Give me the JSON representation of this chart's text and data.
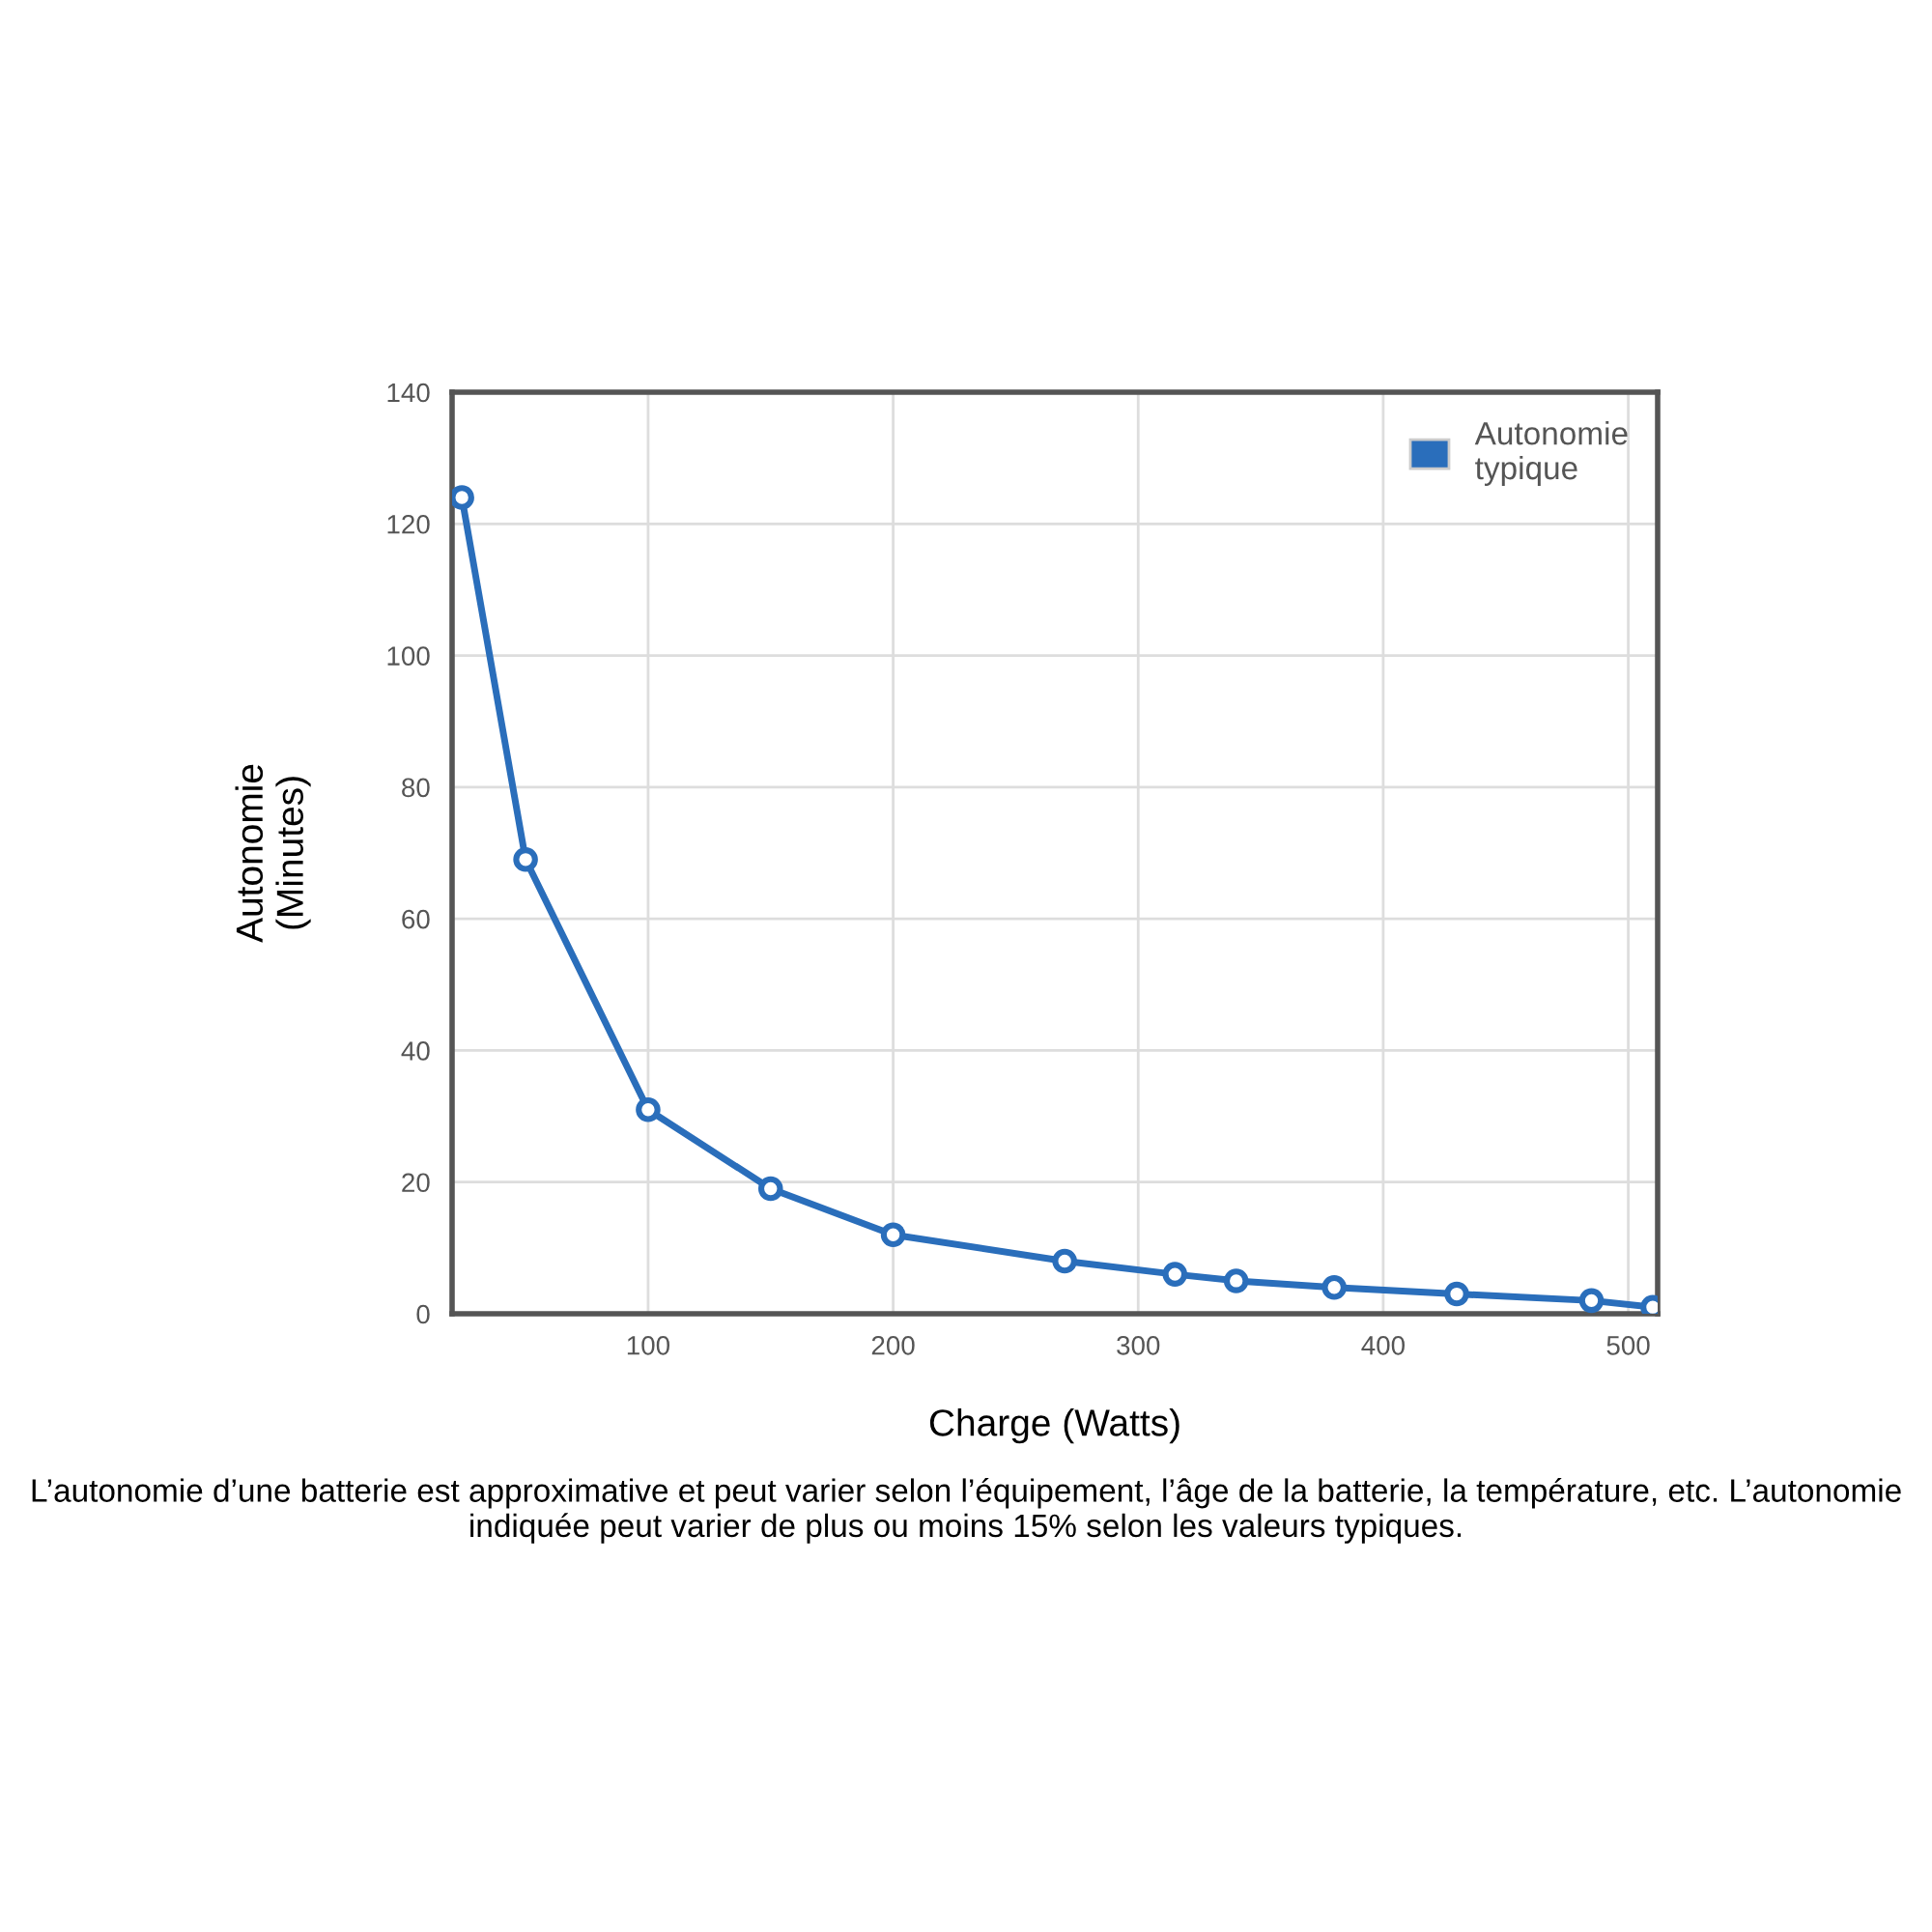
{
  "chart_data": {
    "type": "line",
    "xlabel": "Charge (Watts)",
    "ylabel": "Autonomie\n(Minutes)",
    "x": [
      24,
      50,
      100,
      150,
      200,
      270,
      315,
      340,
      380,
      430,
      485,
      510
    ],
    "series": [
      {
        "name": "Autonomie\ntypique",
        "color": "#2a6ebb",
        "values": [
          124,
          69,
          31,
          19,
          12,
          8,
          6,
          5,
          4,
          3,
          2,
          1
        ]
      }
    ],
    "xlim": [
      20,
      512
    ],
    "xticks": [
      100,
      200,
      300,
      400,
      500
    ],
    "ylim": [
      0,
      140
    ],
    "yticks": [
      0,
      20,
      40,
      60,
      80,
      100,
      120,
      140
    ],
    "grid": true,
    "legend": "top right",
    "marker": "circle",
    "line_style": "solid",
    "annotations": [
      "L’autonomie d’une batterie est approximative et peut varier selon l’équipement, l’âge de la batterie, la température, etc. L’autonomie indiquée peut varier de plus ou moins 15% selon les valeurs typiques."
    ]
  }
}
